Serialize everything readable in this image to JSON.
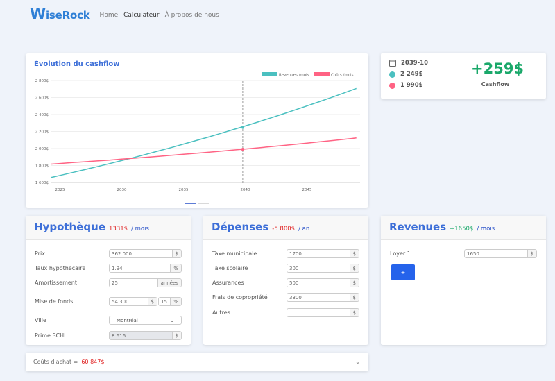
{
  "nav": {
    "brand": "WiseRock",
    "items": [
      {
        "label": "Home"
      },
      {
        "label": "Calculateur"
      },
      {
        "label": "À propos de nous"
      }
    ]
  },
  "chart_card": {
    "title": "Évolution du cashflow"
  },
  "chart_data": {
    "type": "line",
    "title": "Évolution du cashflow",
    "x": [
      2024,
      2025,
      2026,
      2027,
      2028,
      2029,
      2030,
      2031,
      2032,
      2033,
      2034,
      2035,
      2036,
      2037,
      2038,
      2039,
      2040,
      2041,
      2042,
      2043,
      2044,
      2045,
      2046,
      2047,
      2048,
      2049
    ],
    "series": [
      {
        "name": "Revenues /mois",
        "color": "#4bc0c0",
        "values": [
          1650,
          1683,
          1717,
          1751,
          1786,
          1822,
          1858,
          1895,
          1933,
          1972,
          2011,
          2052,
          2093,
          2134,
          2177,
          2221,
          2265,
          2310,
          2357,
          2404,
          2452,
          2501,
          2551,
          2602,
          2654,
          2707
        ]
      },
      {
        "name": "Coûts /mois",
        "color": "#ff6384",
        "values": [
          1814,
          1824,
          1834,
          1844,
          1854,
          1864,
          1875,
          1886,
          1897,
          1908,
          1920,
          1932,
          1944,
          1956,
          1968,
          1981,
          1994,
          2007,
          2021,
          2035,
          2049,
          2063,
          2078,
          2093,
          2108,
          2124
        ]
      }
    ],
    "xticks": [
      2025,
      2030,
      2035,
      2040,
      2045
    ],
    "yticks": [
      {
        "v": 1600,
        "label": "1 600$"
      },
      {
        "v": 1800,
        "label": "1 800$"
      },
      {
        "v": 2000,
        "label": "2 000$"
      },
      {
        "v": 2200,
        "label": "2 200$"
      },
      {
        "v": 2400,
        "label": "2 400$"
      },
      {
        "v": 2600,
        "label": "2 600$"
      },
      {
        "v": 2800,
        "label": "2 800$"
      }
    ],
    "xlim": [
      2024.3,
      2049.3
    ],
    "ylim": [
      1600,
      2800
    ],
    "grid": true,
    "legend": "top-right",
    "hover": {
      "x": 2039.8,
      "values": [
        2249,
        1990
      ]
    }
  },
  "cashflow": {
    "date": "2039-10",
    "revenue": "2 249$",
    "cost": "1 990$",
    "value": "+259$",
    "label": "Cashflow",
    "revenue_color": "#4bc0c0",
    "cost_color": "#ff6384"
  },
  "hypotheque": {
    "title": "Hypothèque",
    "amount": "1331$",
    "unit": "/ mois",
    "prix": {
      "label": "Prix",
      "value": "362 000",
      "suffix": "$"
    },
    "taux": {
      "label": "Taux hypothecaire",
      "value": "1.94",
      "suffix": "%"
    },
    "amort": {
      "label": "Amortissement",
      "value": "25",
      "suffix": "années"
    },
    "mise": {
      "label": "Mise de fonds",
      "value": "54 300",
      "suffix": "$",
      "pct": "15",
      "pct_suffix": "%"
    },
    "ville": {
      "label": "Ville",
      "value": "Montréal"
    },
    "schl": {
      "label": "Prime SCHL",
      "value": "8 616",
      "suffix": "$"
    }
  },
  "depenses": {
    "title": "Dépenses",
    "amount": "-5 800$",
    "unit": "/ an",
    "items": [
      {
        "label": "Taxe municipale",
        "value": "1700",
        "suffix": "$"
      },
      {
        "label": "Taxe scolaire",
        "value": "300",
        "suffix": "$"
      },
      {
        "label": "Assurances",
        "value": "500",
        "suffix": "$"
      },
      {
        "label": "Frais de copropriété",
        "value": "3300",
        "suffix": "$"
      },
      {
        "label": "Autres",
        "value": "",
        "suffix": "$"
      }
    ]
  },
  "revenues": {
    "title": "Revenues",
    "amount": "+1650$",
    "unit": "/ mois",
    "loyer": {
      "label": "Loyer 1",
      "value": "1650",
      "suffix": "$"
    },
    "add_label": "+"
  },
  "couts": {
    "label": "Coûts d'achat =",
    "value": "60 847$"
  }
}
